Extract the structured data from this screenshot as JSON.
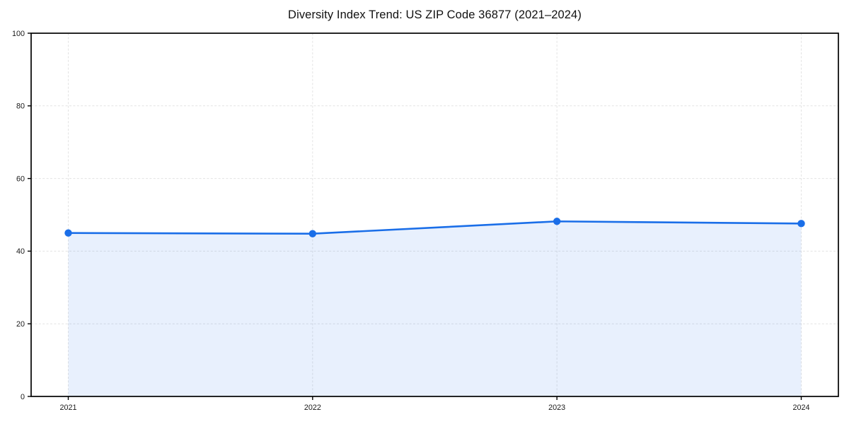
{
  "chart_data": {
    "type": "area",
    "title": "Diversity Index Trend: US ZIP Code 36877 (2021–2024)",
    "categories": [
      "2021",
      "2022",
      "2023",
      "2024"
    ],
    "values": [
      45.0,
      44.8,
      48.2,
      47.6
    ],
    "series_name": "Diversity Index",
    "xlabel": "",
    "ylabel": "",
    "ylim": [
      0,
      100
    ],
    "yticks": [
      0,
      20,
      40,
      60,
      80,
      100
    ],
    "grid": true,
    "grid_style": "dashed",
    "legend_position": "none",
    "colors": {
      "line": "#1a6ee8",
      "marker": "#1a6ee8",
      "fill": "rgba(26,110,232,0.10)",
      "grid": "#e3e3e3",
      "spine": "#000000",
      "tick_label": "#1a1a1a",
      "title": "#111111",
      "background": "#ffffff"
    }
  }
}
